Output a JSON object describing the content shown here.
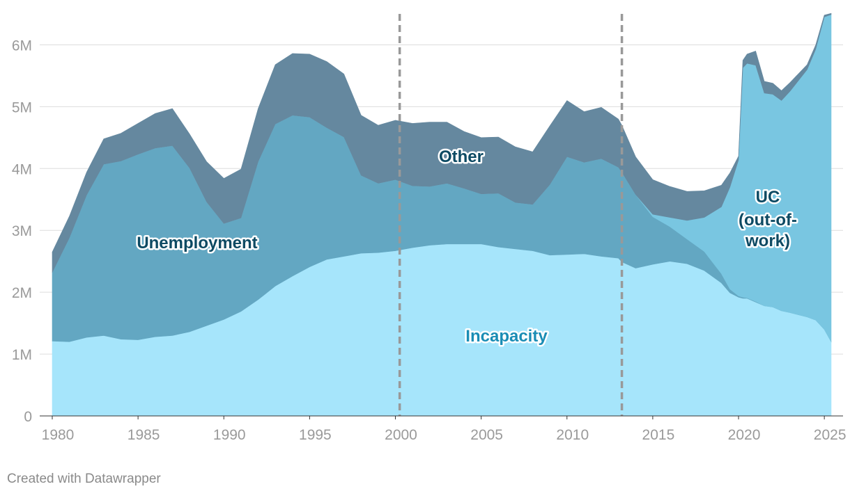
{
  "chart_data": {
    "type": "area",
    "stacked": true,
    "title": "",
    "xlabel": "",
    "ylabel": "",
    "xlim": [
      1979.2,
      2025.6
    ],
    "ylim": [
      0,
      6500000
    ],
    "x_ticks": [
      1980,
      1985,
      1990,
      1995,
      2000,
      2005,
      2010,
      2015,
      2020,
      2025
    ],
    "x_tick_labels": [
      "1980",
      "1985",
      "1990",
      "1995",
      "2000",
      "2005",
      "2010",
      "2015",
      "2020",
      "2025"
    ],
    "y_ticks": [
      0,
      1000000,
      2000000,
      3000000,
      4000000,
      5000000,
      6000000
    ],
    "y_tick_labels": [
      "0",
      "1M",
      "2M",
      "3M",
      "4M",
      "5M",
      "6M"
    ],
    "reference_lines_x": [
      2000.25,
      2013.2
    ],
    "annotations": [
      "Unemployment",
      "Other",
      "UC",
      "(out-of-",
      "work)",
      "Incapacity"
    ],
    "credit": "Created with Datawrapper",
    "colors": {
      "Incapacity": "#a6e5fb",
      "Unemployment": "#63a7c2",
      "UC (out-of-work)": "#79c6e1",
      "Other": "#65889f",
      "label_dark": "#0d4a63",
      "label_incapacity": "#1a8db5",
      "grid": "#dddddd",
      "reference": "#999999"
    },
    "series": [
      {
        "name": "Incapacity",
        "x": [
          1980,
          1981,
          1982,
          1983,
          1984,
          1985,
          1986,
          1987,
          1988,
          1989,
          1990,
          1991,
          1992,
          1993,
          1994,
          1995,
          1996,
          1997,
          1998,
          1999,
          2000,
          2001,
          2002,
          2003,
          2004,
          2005,
          2006,
          2007,
          2008,
          2009,
          2010,
          2011,
          2012,
          2013,
          2013.2,
          2014,
          2015,
          2016,
          2017,
          2018,
          2019,
          2019.5,
          2020,
          2020.25,
          2020.5,
          2021,
          2021.5,
          2022,
          2022.5,
          2023,
          2024,
          2024.5,
          2025,
          2025.4
        ],
        "values": [
          1210000,
          1200000,
          1270000,
          1300000,
          1240000,
          1230000,
          1280000,
          1300000,
          1360000,
          1460000,
          1560000,
          1690000,
          1880000,
          2100000,
          2260000,
          2410000,
          2530000,
          2580000,
          2630000,
          2640000,
          2670000,
          2720000,
          2760000,
          2780000,
          2780000,
          2780000,
          2730000,
          2700000,
          2670000,
          2600000,
          2610000,
          2620000,
          2580000,
          2550000,
          2490000,
          2390000,
          2450000,
          2500000,
          2460000,
          2350000,
          2150000,
          1990000,
          1920000,
          1900000,
          1900000,
          1840000,
          1780000,
          1760000,
          1700000,
          1670000,
          1600000,
          1550000,
          1400000,
          1200000
        ]
      },
      {
        "name": "Unemployment",
        "x": [
          1980,
          1981,
          1982,
          1983,
          1984,
          1985,
          1986,
          1987,
          1988,
          1989,
          1990,
          1991,
          1992,
          1993,
          1994,
          1995,
          1996,
          1997,
          1998,
          1999,
          2000,
          2001,
          2002,
          2003,
          2004,
          2005,
          2006,
          2007,
          2008,
          2009,
          2010,
          2011,
          2012,
          2013,
          2013.2,
          2014,
          2015,
          2016,
          2017,
          2018,
          2019,
          2019.5,
          2020,
          2020.25,
          2020.5,
          2021,
          2021.5,
          2022,
          2022.5,
          2023,
          2024,
          2024.5,
          2025,
          2025.4
        ],
        "values": [
          1110000,
          1680000,
          2300000,
          2770000,
          2880000,
          3000000,
          3050000,
          3070000,
          2650000,
          2000000,
          1550000,
          1510000,
          2230000,
          2620000,
          2600000,
          2420000,
          2130000,
          1930000,
          1260000,
          1120000,
          1150000,
          1000000,
          950000,
          980000,
          900000,
          810000,
          870000,
          750000,
          750000,
          1140000,
          1580000,
          1480000,
          1580000,
          1470000,
          1450000,
          1190000,
          770000,
          560000,
          400000,
          310000,
          150000,
          60000,
          20000,
          20000,
          10000,
          10000,
          0,
          0,
          0,
          0,
          0,
          0,
          0,
          0
        ]
      },
      {
        "name": "UC (out-of-work)",
        "x": [
          1980,
          1981,
          1982,
          1983,
          1984,
          1985,
          1986,
          1987,
          1988,
          1989,
          1990,
          1991,
          1992,
          1993,
          1994,
          1995,
          1996,
          1997,
          1998,
          1999,
          2000,
          2001,
          2002,
          2003,
          2004,
          2005,
          2006,
          2007,
          2008,
          2009,
          2010,
          2011,
          2012,
          2013,
          2013.2,
          2014,
          2015,
          2016,
          2017,
          2018,
          2019,
          2019.5,
          2020,
          2020.25,
          2020.5,
          2021,
          2021.5,
          2022,
          2022.5,
          2023,
          2024,
          2024.5,
          2025,
          2025.4
        ],
        "values": [
          0,
          0,
          0,
          0,
          0,
          0,
          0,
          0,
          0,
          0,
          0,
          0,
          0,
          0,
          0,
          0,
          0,
          0,
          0,
          0,
          0,
          0,
          0,
          0,
          0,
          0,
          0,
          0,
          0,
          0,
          0,
          0,
          0,
          0,
          0,
          0,
          40000,
          150000,
          300000,
          550000,
          1080000,
          1650000,
          2200000,
          3710000,
          3790000,
          3820000,
          3440000,
          3440000,
          3400000,
          3580000,
          4000000,
          4380000,
          5050000,
          5290000
        ]
      },
      {
        "name": "Other",
        "x": [
          1980,
          1981,
          1982,
          1983,
          1984,
          1985,
          1986,
          1987,
          1988,
          1989,
          1990,
          1991,
          1992,
          1993,
          1994,
          1995,
          1996,
          1997,
          1998,
          1999,
          2000,
          2001,
          2002,
          2003,
          2004,
          2005,
          2006,
          2007,
          2008,
          2009,
          2010,
          2011,
          2012,
          2013,
          2013.2,
          2014,
          2015,
          2016,
          2017,
          2018,
          2019,
          2019.5,
          2020,
          2020.25,
          2020.5,
          2021,
          2021.5,
          2022,
          2022.5,
          2023,
          2024,
          2024.5,
          2025,
          2025.4
        ],
        "values": [
          330000,
          350000,
          370000,
          410000,
          450000,
          500000,
          560000,
          600000,
          550000,
          650000,
          730000,
          790000,
          860000,
          960000,
          1000000,
          1020000,
          1070000,
          1020000,
          970000,
          940000,
          960000,
          1010000,
          1040000,
          990000,
          920000,
          910000,
          910000,
          900000,
          850000,
          950000,
          910000,
          820000,
          830000,
          780000,
          760000,
          610000,
          560000,
          500000,
          470000,
          430000,
          350000,
          230000,
          60000,
          120000,
          150000,
          230000,
          190000,
          180000,
          160000,
          140000,
          80000,
          70000,
          30000,
          20000
        ]
      }
    ]
  }
}
